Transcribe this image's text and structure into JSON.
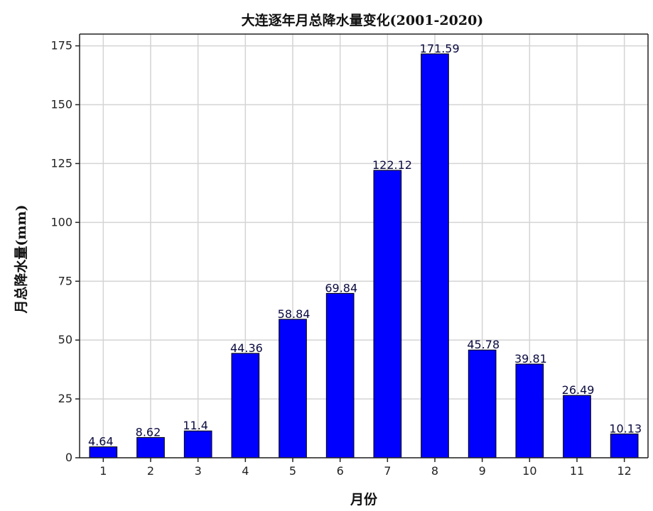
{
  "chart_data": {
    "type": "bar",
    "title": "大连逐年月总降水量变化(2001-2020)",
    "xlabel": "月份",
    "ylabel": "月总降水量(mm)",
    "categories": [
      "1",
      "2",
      "3",
      "4",
      "5",
      "6",
      "7",
      "8",
      "9",
      "10",
      "11",
      "12"
    ],
    "values": [
      4.64,
      8.62,
      11.4,
      44.36,
      58.84,
      69.84,
      122.12,
      171.59,
      45.78,
      39.81,
      26.49,
      10.13
    ],
    "data_labels": [
      "4.64",
      "8.62",
      "11.4",
      "44.36",
      "58.84",
      "69.84",
      "122.12",
      "171.59",
      "45.78",
      "39.81",
      "26.49",
      "10.13"
    ],
    "ylim": [
      0,
      180
    ],
    "yticks": [
      0,
      25,
      50,
      75,
      100,
      125,
      150,
      175
    ],
    "grid": true,
    "bar_color": "#0000ff",
    "bar_edge_color": "#000000"
  }
}
